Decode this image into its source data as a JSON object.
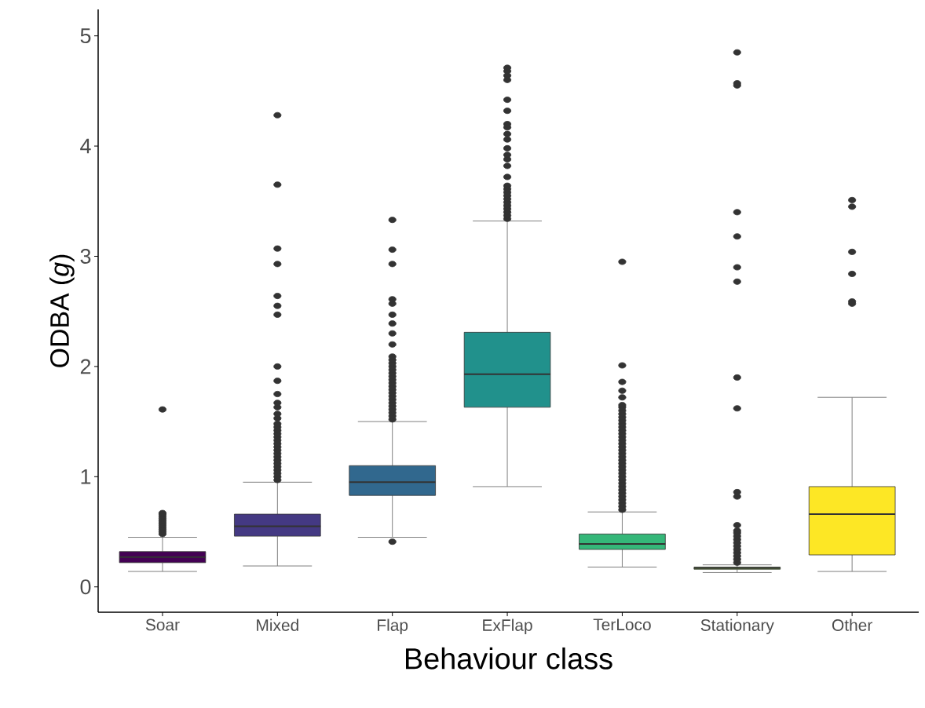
{
  "chart_data": {
    "type": "box",
    "xlabel": "Behaviour class",
    "ylabel": "ODBA (*g*)",
    "categories": [
      "Soar",
      "Mixed",
      "Flap",
      "ExFlap",
      "TerLoco",
      "Stationary",
      "Other"
    ],
    "colors": [
      "#440154",
      "#443983",
      "#31688e",
      "#21918c",
      "#35b779",
      "#8fd744",
      "#fde725"
    ],
    "boxes": [
      {
        "low": 0.14,
        "q1": 0.22,
        "median": 0.27,
        "q3": 0.32,
        "high": 0.45,
        "outliers": [
          0.48,
          0.5,
          0.52,
          0.54,
          0.56,
          0.58,
          0.6,
          0.62,
          0.64,
          0.66,
          0.67,
          1.61
        ]
      },
      {
        "low": 0.19,
        "q1": 0.46,
        "median": 0.55,
        "q3": 0.66,
        "high": 0.95,
        "outliers": [
          0.97,
          1.0,
          1.03,
          1.06,
          1.09,
          1.12,
          1.15,
          1.18,
          1.21,
          1.24,
          1.27,
          1.3,
          1.33,
          1.36,
          1.39,
          1.42,
          1.45,
          1.48,
          1.53,
          1.57,
          1.63,
          1.67,
          1.75,
          1.87,
          2.0,
          2.47,
          2.55,
          2.64,
          2.93,
          3.07,
          3.65,
          4.28
        ]
      },
      {
        "low": 0.45,
        "q1": 0.83,
        "median": 0.95,
        "q3": 1.1,
        "high": 1.5,
        "outliers": [
          0.41,
          1.52,
          1.55,
          1.58,
          1.61,
          1.64,
          1.67,
          1.7,
          1.73,
          1.76,
          1.79,
          1.82,
          1.85,
          1.88,
          1.91,
          1.94,
          1.97,
          2.0,
          2.03,
          2.06,
          2.09,
          2.2,
          2.3,
          2.39,
          2.47,
          2.57,
          2.61,
          2.93,
          3.06,
          3.33
        ]
      },
      {
        "low": 0.91,
        "q1": 1.63,
        "median": 1.93,
        "q3": 2.31,
        "high": 3.32,
        "outliers": [
          3.34,
          3.37,
          3.4,
          3.43,
          3.46,
          3.49,
          3.52,
          3.55,
          3.58,
          3.61,
          3.64,
          3.72,
          3.82,
          3.88,
          3.92,
          3.98,
          4.06,
          4.11,
          4.17,
          4.2,
          4.32,
          4.42,
          4.6,
          4.64,
          4.68,
          4.71
        ]
      },
      {
        "low": 0.18,
        "q1": 0.34,
        "median": 0.39,
        "q3": 0.48,
        "high": 0.68,
        "outliers": [
          0.7,
          0.73,
          0.76,
          0.79,
          0.82,
          0.85,
          0.88,
          0.91,
          0.94,
          0.97,
          1.0,
          1.03,
          1.06,
          1.09,
          1.12,
          1.15,
          1.18,
          1.21,
          1.24,
          1.27,
          1.3,
          1.33,
          1.36,
          1.39,
          1.42,
          1.45,
          1.48,
          1.51,
          1.54,
          1.57,
          1.6,
          1.63,
          1.65,
          1.72,
          1.78,
          1.86,
          2.01,
          2.95
        ]
      },
      {
        "low": 0.13,
        "q1": 0.16,
        "median": 0.17,
        "q3": 0.18,
        "high": 0.2,
        "outliers": [
          0.22,
          0.25,
          0.28,
          0.31,
          0.34,
          0.37,
          0.4,
          0.43,
          0.46,
          0.49,
          0.51,
          0.56,
          0.82,
          0.86,
          1.62,
          1.9,
          2.77,
          2.9,
          3.18,
          3.4,
          4.55,
          4.57,
          4.85
        ]
      },
      {
        "low": 0.14,
        "q1": 0.29,
        "median": 0.66,
        "q3": 0.91,
        "high": 1.72,
        "outliers": [
          2.57,
          2.59,
          2.84,
          3.04,
          3.45,
          3.51
        ]
      }
    ],
    "ylim": [
      -0.23,
      5.24
    ],
    "yticks": [
      0,
      1,
      2,
      3,
      4,
      5
    ]
  }
}
